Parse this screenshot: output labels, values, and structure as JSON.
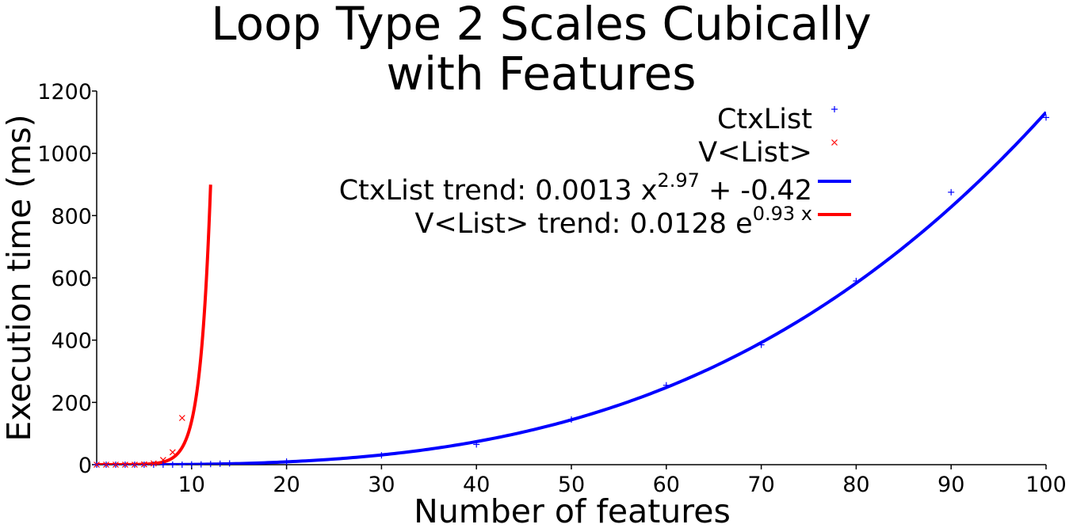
{
  "chart_data": {
    "type": "scatter",
    "title_lines": [
      "Loop Type 2 Scales Cubically",
      "with Features"
    ],
    "xlabel": "Number of features",
    "ylabel": "Execution time (ms)",
    "xlim": [
      0,
      100
    ],
    "ylim": [
      0,
      1200
    ],
    "x_ticks": [
      10,
      20,
      30,
      40,
      50,
      60,
      70,
      80,
      90,
      100
    ],
    "y_ticks": [
      0,
      200,
      400,
      600,
      800,
      1000,
      1200
    ],
    "grid": false,
    "legend_position": "top-right",
    "series": [
      {
        "name": "CtxList",
        "kind": "points",
        "marker": "+",
        "color": "#0000ff",
        "x": [
          0,
          1,
          2,
          3,
          4,
          5,
          6,
          7,
          8,
          9,
          10,
          11,
          12,
          13,
          14,
          20,
          30,
          40,
          50,
          60,
          70,
          80,
          90,
          100
        ],
        "y": [
          0,
          0,
          0,
          0,
          0,
          0,
          0,
          0,
          0,
          0,
          1,
          1,
          2,
          3,
          4,
          10,
          30,
          65,
          145,
          255,
          385,
          590,
          875,
          1115
        ]
      },
      {
        "name": "V<List>",
        "kind": "points",
        "marker": "x",
        "color": "#ff0000",
        "x": [
          0,
          1,
          2,
          3,
          4,
          5,
          6,
          7,
          8,
          9
        ],
        "y": [
          0,
          0,
          0,
          0,
          0,
          1,
          4,
          15,
          40,
          150
        ]
      },
      {
        "name": "CtxList trend",
        "kind": "trend",
        "model": "power",
        "color": "#0000ff",
        "legend_prefix": "CtxList trend: 0.0013 x",
        "legend_exponent": "2.97",
        "legend_suffix": " + -0.42",
        "coef": 0.0013,
        "exponent": 2.97,
        "offset": -0.42,
        "x_range": [
          0,
          100
        ]
      },
      {
        "name": "V<List> trend",
        "kind": "trend",
        "model": "exp",
        "color": "#ff0000",
        "legend_prefix": "V<List> trend: 0.0128 e",
        "legend_exponent": "0.93 x",
        "legend_suffix": "",
        "coef": 0.0128,
        "rate": 0.93,
        "x_range": [
          0,
          12
        ]
      }
    ]
  }
}
